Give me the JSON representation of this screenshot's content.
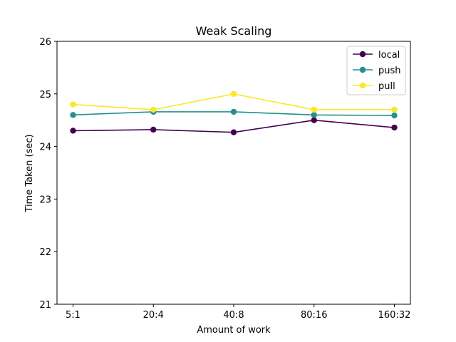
{
  "chart_data": {
    "type": "line",
    "title": "Weak Scaling",
    "xlabel": "Amount of work",
    "ylabel": "Time Taken (sec)",
    "categories": [
      "5:1",
      "20:4",
      "40:8",
      "80:16",
      "160:32"
    ],
    "ylim": [
      21,
      26
    ],
    "yticks": [
      21,
      22,
      23,
      24,
      25,
      26
    ],
    "grid": false,
    "legend_position": "top-right",
    "series": [
      {
        "name": "local",
        "color": "#440154",
        "values": [
          24.3,
          24.32,
          24.27,
          24.5,
          24.36
        ]
      },
      {
        "name": "push",
        "color": "#21918c",
        "values": [
          24.6,
          24.66,
          24.66,
          24.6,
          24.59
        ]
      },
      {
        "name": "pull",
        "color": "#fde725",
        "values": [
          24.8,
          24.7,
          25.0,
          24.7,
          24.7
        ]
      }
    ]
  }
}
